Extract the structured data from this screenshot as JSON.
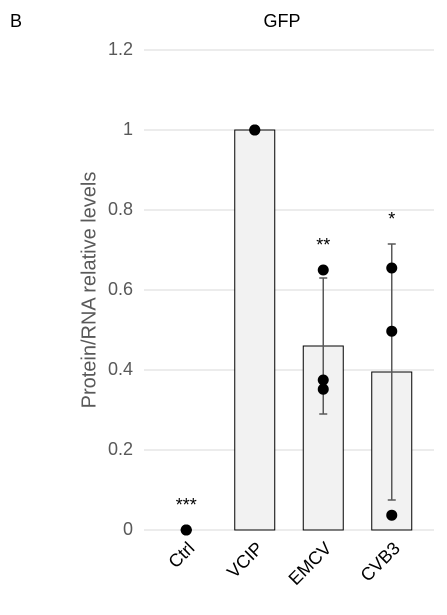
{
  "panel_label": "B",
  "chart_data": {
    "type": "bar",
    "title": "GFP",
    "y_label": "Protein/RNA relative levels",
    "categories": [
      "Ctrl",
      "VCIP",
      "EMCV",
      "CVB3"
    ],
    "values": [
      0,
      1,
      0.46,
      0.395
    ],
    "errors": [
      0,
      0,
      0.17,
      0.32
    ],
    "points": [
      [
        0,
        0,
        0
      ],
      [
        1,
        1,
        1
      ],
      [
        0.65,
        0.375,
        0.352
      ],
      [
        0.655,
        0.497,
        0.037
      ]
    ],
    "annotations": [
      "***",
      null,
      "**",
      "*"
    ],
    "color": "#f2f2f2",
    "edge_color": "#000000",
    "point_color": "#000000",
    "error_color": "#595959",
    "ylim": [
      0,
      1.2
    ],
    "yticks": [
      0,
      0.2,
      0.4,
      0.6,
      0.8,
      1,
      1.2
    ],
    "grid": true
  }
}
